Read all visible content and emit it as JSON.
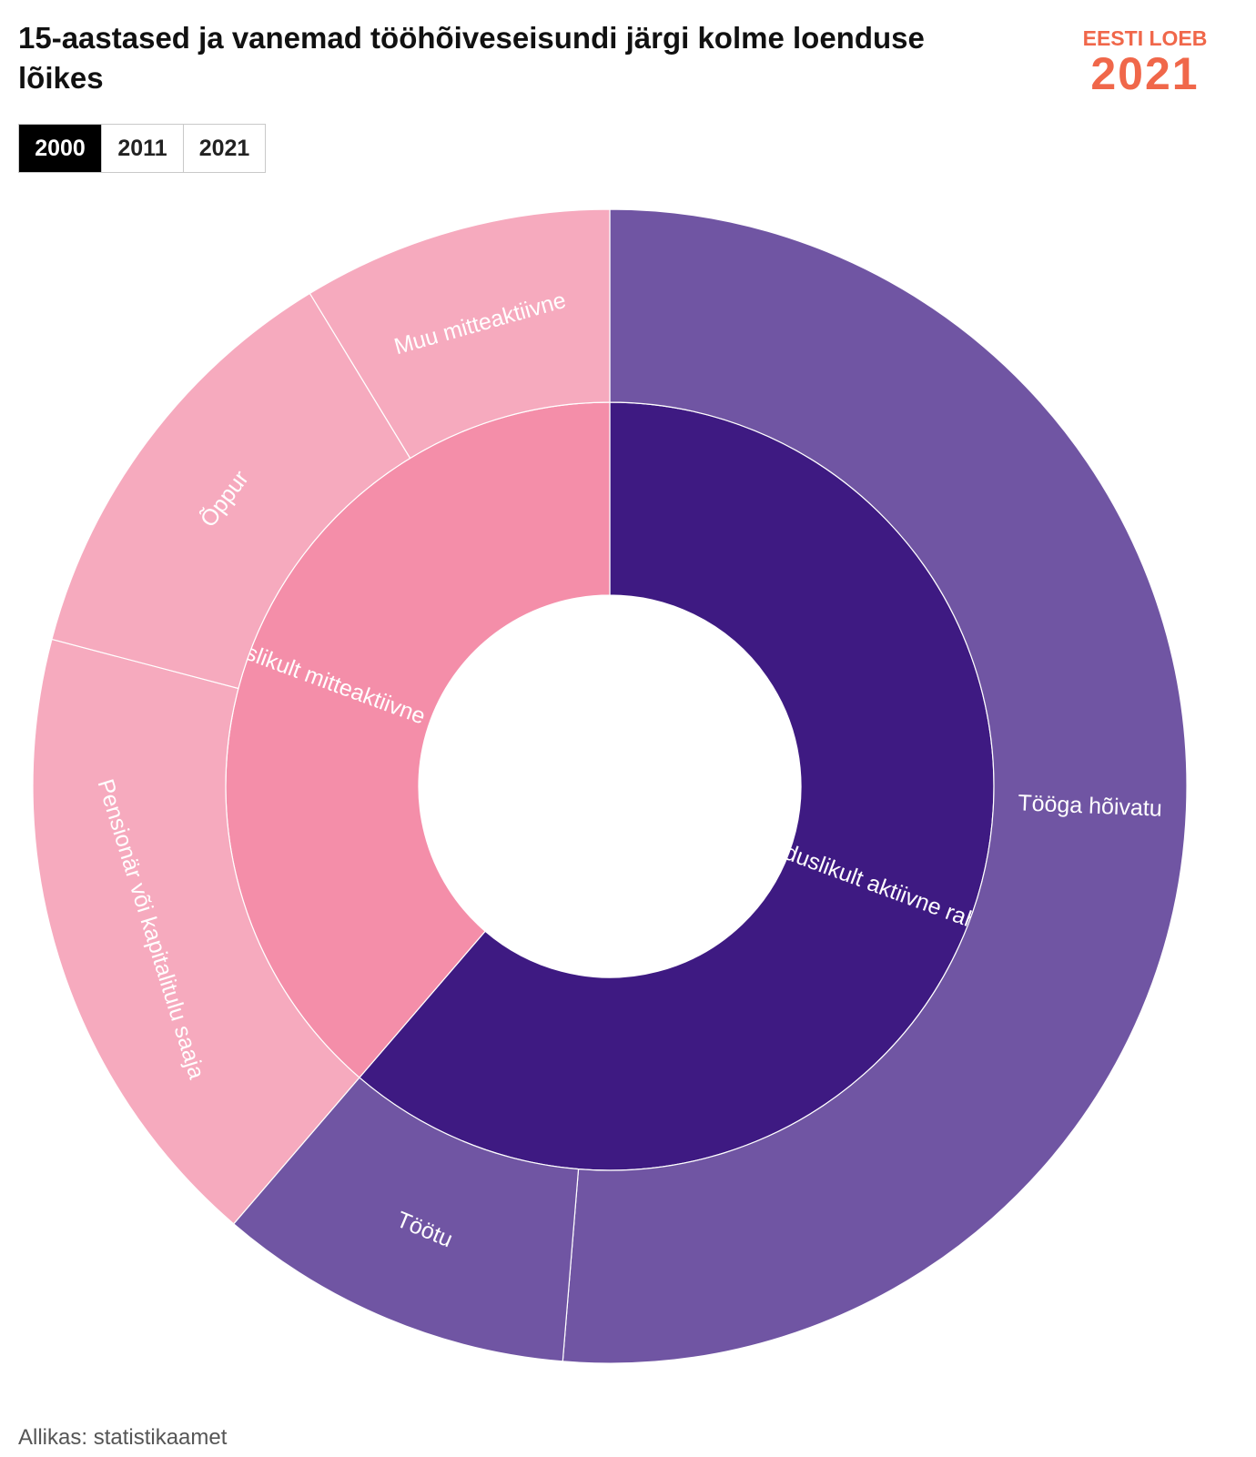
{
  "title": "15-aastased ja vanemad tööhõiveseisundi järgi kolme loenduse lõikes",
  "logo": {
    "text_top": "EESTI LOEB",
    "text_bottom": "2021",
    "color": "#f0674a"
  },
  "tabs": [
    {
      "label": "2000",
      "active": true
    },
    {
      "label": "2011",
      "active": false
    },
    {
      "label": "2021",
      "active": false
    }
  ],
  "source": "Allikas: statistikaamet",
  "chart_data": {
    "type": "sunburst",
    "title": "15-aastased ja vanemad tööhõiveseisundi järgi kolme loenduse lõikes",
    "year": "2000",
    "start_angle_deg": 0,
    "direction": "clockwise",
    "rings": [
      {
        "level": 1,
        "segments": [
          {
            "label": "Majanduslikult aktiivne rahvastik",
            "value": 61.3,
            "color": "#3e1a82"
          },
          {
            "label": "Majanduslikult mitteaktiivne rahvastik",
            "value": 38.7,
            "color": "#f48ea9"
          }
        ]
      },
      {
        "level": 2,
        "segments": [
          {
            "label": "Tööga hõivatu",
            "value": 51.3,
            "parent": "Majanduslikult aktiivne rahvastik",
            "color": "#7055a3"
          },
          {
            "label": "Töötu",
            "value": 10.0,
            "parent": "Majanduslikult aktiivne rahvastik",
            "color": "#7055a3"
          },
          {
            "label": "Pensionär või kapitalitulu saaja",
            "value": 17.8,
            "parent": "Majanduslikult mitteaktiivne rahvastik",
            "color": "#f6aabe"
          },
          {
            "label": "Õppur",
            "value": 12.2,
            "parent": "Majanduslikult mitteaktiivne rahvastik",
            "color": "#f6aabe"
          },
          {
            "label": "Muu mitteaktiivne",
            "value": 8.7,
            "parent": "Majanduslikult mitteaktiivne rahvastik",
            "color": "#f6aabe"
          }
        ]
      }
    ]
  }
}
